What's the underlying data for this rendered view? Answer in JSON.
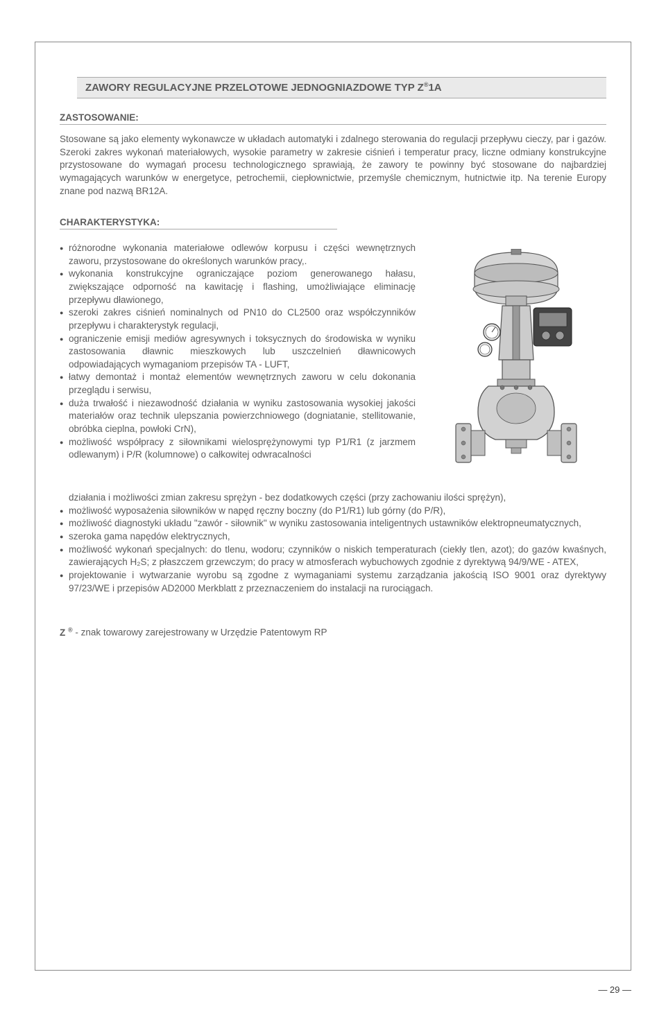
{
  "page": {
    "title_prefix": "ZAWORY REGULACYJNE PRZELOTOWE JEDNOGNIAZDOWE ",
    "title_bold": "TYP Z",
    "title_sup": "®",
    "title_suffix": "1A",
    "zastosowanie_header": "ZASTOSOWANIE:",
    "zastosowanie_body": "Stosowane są jako elementy wykonawcze w układach automatyki i zdalnego sterowania do regulacji przepływu cieczy, par i gazów. Szeroki zakres wykonań materiałowych, wysokie parametry w zakresie ciśnień i temperatur pracy, liczne odmiany konstrukcyjne przystosowane do wymagań procesu technologicznego sprawiają, że zawory te powinny być stosowane do najbardziej wymagających warunków w energetyce, petrochemii, ciepłownictwie, przemyśle chemicznym, hutnictwie itp. Na terenie Europy znane pod nazwą BR12A.",
    "charakterystyka_header": "CHARAKTERYSTYKA:",
    "bullets_left": [
      "różnorodne wykonania materiałowe odlewów korpusu i części wewnętrznych zaworu, przystosowane do określonych warunków pracy,.",
      "wykonania konstrukcyjne ograniczające poziom generowanego hałasu, zwiększające odporność na kawitację i flashing, umożliwiające eliminację przepływu dławionego,",
      "szeroki zakres ciśnień nominalnych od PN10 do CL2500 oraz współczynników przepływu i charakterystyk regulacji,",
      "ograniczenie emisji mediów agresywnych i toksycznych do środowiska w wyniku zastosowania dławnic  mieszkowych lub uszczelnień dławnicowych odpowiadających wymaganiom przepisów TA - LUFT,",
      "łatwy demontaż i montaż elementów wewnętrznych zaworu w celu dokonania przeglądu i serwisu,",
      "duża trwałość i niezawodność działania w wyniku zastosowania wysokiej jakości materiałów oraz technik ulepszania powierzchniowego (dogniatanie, stellitowanie, obróbka cieplna, powłoki CrN),",
      "możliwość współpracy z siłownikami wielosprężynowymi typ P1/R1 (z jarzmem odlewanym) i P/R (kolumnowe) o całkowitej odwracalności"
    ],
    "bullets_full": [
      "działania i możliwości zmian zakresu sprężyn - bez dodatkowych części  (przy zachowaniu ilości sprężyn),",
      "możliwość wyposażenia siłowników w napęd ręczny boczny (do P1/R1) lub górny (do P/R),",
      "możliwość diagnostyki układu \"zawór - siłownik\" w wyniku zastosowania inteligentnych ustawników elektropneumatycznych,",
      "szeroka gama napędów elektrycznych,",
      "możliwość wykonań specjalnych: do tlenu, wodoru; czynników o niskich temperaturach (ciekły tlen, azot); do gazów kwaśnych, zawierających H₂S; z płaszczem grzewczym; do pracy w atmosferach wybuchowych zgodnie z dyrektywą 94/9/WE - ATEX,",
      "projektowanie i wytwarzanie wyrobu są zgodne z wymaganiami systemu zarządzania jakością ISO 9001 oraz dyrektywy 97/23/WE i przepisów AD2000 Merkblatt z przeznaczeniem do instalacji na rurociągach."
    ],
    "trademark_prefix": "Z ",
    "trademark_sup": "®",
    "trademark_text": " - znak towarowy zarejestrowany w Urzędzie Patentowym RP",
    "page_number": "— 29 —",
    "colors": {
      "text": "#5c5c5c",
      "border": "#888888",
      "title_bg": "#eaeaea"
    }
  }
}
